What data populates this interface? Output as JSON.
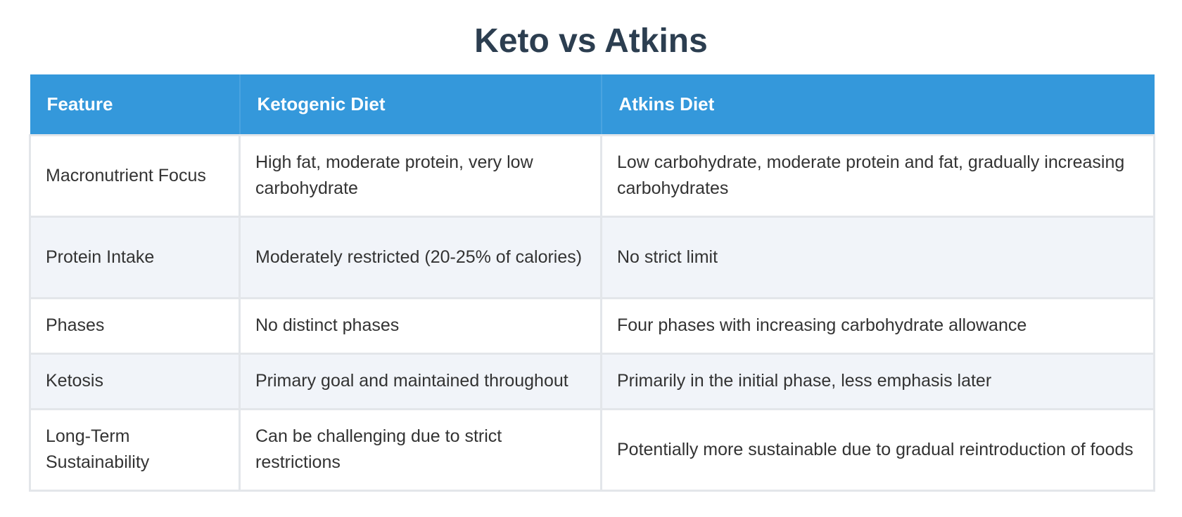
{
  "title": "Keto vs Atkins",
  "table": {
    "headers": [
      "Feature",
      "Ketogenic Diet",
      "Atkins Diet"
    ],
    "rows": [
      [
        "Macronutrient Focus",
        "High fat, moderate protein, very low carbohydrate",
        "Low carbohydrate, moderate protein and fat, gradually increasing carbohydrates"
      ],
      [
        "Protein Intake",
        "Moderately restricted (20-25% of calories)",
        "No strict limit"
      ],
      [
        "Phases",
        "No distinct phases",
        "Four phases with increasing carbohydrate allowance"
      ],
      [
        "Ketosis",
        "Primary goal and maintained throughout",
        "Primarily in the initial phase, less emphasis later"
      ],
      [
        "Long-Term Sustainability",
        "Can be challenging due to strict restrictions",
        "Potentially more sustainable due to gradual reintroduction of foods"
      ]
    ]
  },
  "colors": {
    "header_bg": "#3498db",
    "title": "#2c3e50",
    "stripe": "#f1f4f9",
    "border": "#e3e6ea"
  }
}
